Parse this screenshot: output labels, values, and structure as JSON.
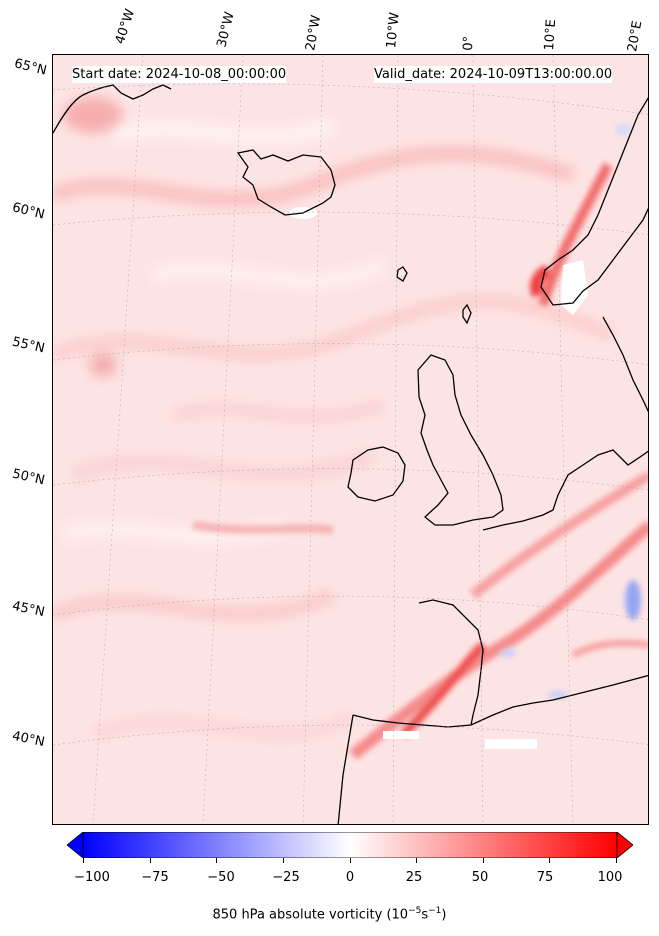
{
  "header": {
    "start": "Start date: 2024-10-08_00:00:00",
    "valid": "Valid_date: 2024-10-09T13:00:00.00"
  },
  "axes": {
    "lon_labels": [
      "40°W",
      "30°W",
      "20°W",
      "10°W",
      "0°",
      "10°E",
      "20°E"
    ],
    "lat_labels": [
      "65°N",
      "60°N",
      "55°N",
      "50°N",
      "45°N",
      "40°N"
    ]
  },
  "colorbar": {
    "label_main": "850 hPa absolute vorticity (10",
    "label_exp1": "−5",
    "label_mid": "s",
    "label_exp2": "−1",
    "label_end": ")",
    "ticks": [
      "−100",
      "−75",
      "−50",
      "−25",
      "0",
      "25",
      "50",
      "75",
      "100"
    ],
    "range": [
      -100,
      100
    ],
    "colormap": "bwr",
    "extend": "both"
  },
  "colors": {
    "background_field": "#fde4e4",
    "coastline": "#000000",
    "negative_max": "#0000ff",
    "positive_max": "#ff0000"
  }
}
